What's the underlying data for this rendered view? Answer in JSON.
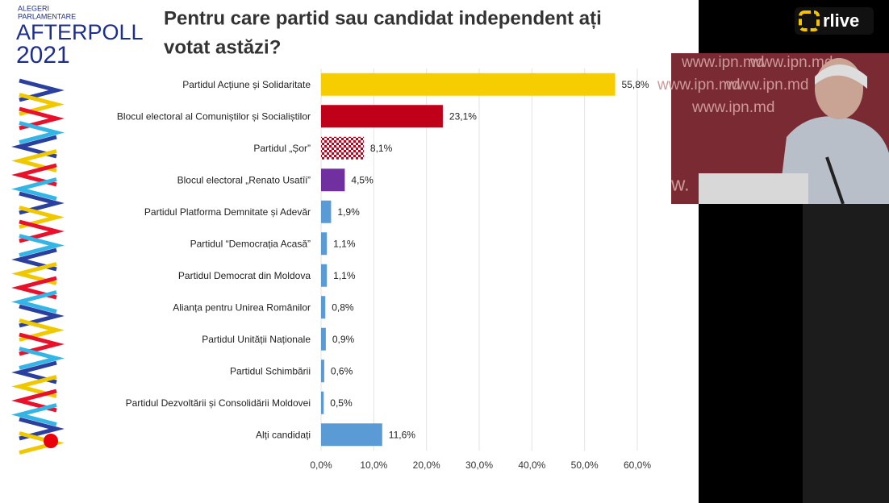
{
  "logo": {
    "line1": "ALEGERI",
    "line2": "PARLAMENTARE",
    "line3": "AFTERPOLL",
    "line4": "2021"
  },
  "broadcaster": "rlive",
  "video_backdrop_text": "www.ipn.md",
  "chart_data": {
    "type": "bar",
    "orientation": "horizontal",
    "title": [
      "Pentru care partid sau candidat independent ați",
      "votat astăzi?"
    ],
    "categories": [
      "Partidul Acțiune și Solidaritate",
      "Blocul electoral al Comuniștilor și Socialiștilor",
      "Partidul „Șor”",
      "Blocul electoral „Renato Usatîi”",
      "Partidul Platforma Demnitate și Adevăr",
      "Partidul “Democrația Acasă”",
      "Partidul Democrat din Moldova",
      "Alianța pentru Unirea Românilor",
      "Partidul Unității Naționale",
      "Partidul Schimbării",
      "Partidul Dezvoltării și Consolidării Moldovei",
      "Alți candidați"
    ],
    "values": [
      55.8,
      23.1,
      8.1,
      4.5,
      1.9,
      1.1,
      1.1,
      0.8,
      0.9,
      0.6,
      0.5,
      11.6
    ],
    "value_labels": [
      "55,8%",
      "23,1%",
      "8,1%",
      "4,5%",
      "1,9%",
      "1,1%",
      "1,1%",
      "0,8%",
      "0,9%",
      "0,6%",
      "0,5%",
      "11,6%"
    ],
    "colors": [
      "#f5cd00",
      "#c00018",
      "#c00018",
      "#7030a0",
      "#5b9bd5",
      "#5b9bd5",
      "#5b9bd5",
      "#5b9bd5",
      "#5b9bd5",
      "#5b9bd5",
      "#5b9bd5",
      "#5b9bd5"
    ],
    "patterns": [
      null,
      null,
      "checkered",
      null,
      null,
      null,
      null,
      null,
      null,
      null,
      null,
      null
    ],
    "xlim": [
      0,
      60
    ],
    "xticks": [
      {
        "value": 0,
        "label": "0,0%"
      },
      {
        "value": 10,
        "label": "10,0%"
      },
      {
        "value": 20,
        "label": "20,0%"
      },
      {
        "value": 30,
        "label": "30,0%"
      },
      {
        "value": 40,
        "label": "40,0%"
      },
      {
        "value": 50,
        "label": "50,0%"
      },
      {
        "value": 60,
        "label": "60,0%"
      }
    ],
    "grid": true
  }
}
